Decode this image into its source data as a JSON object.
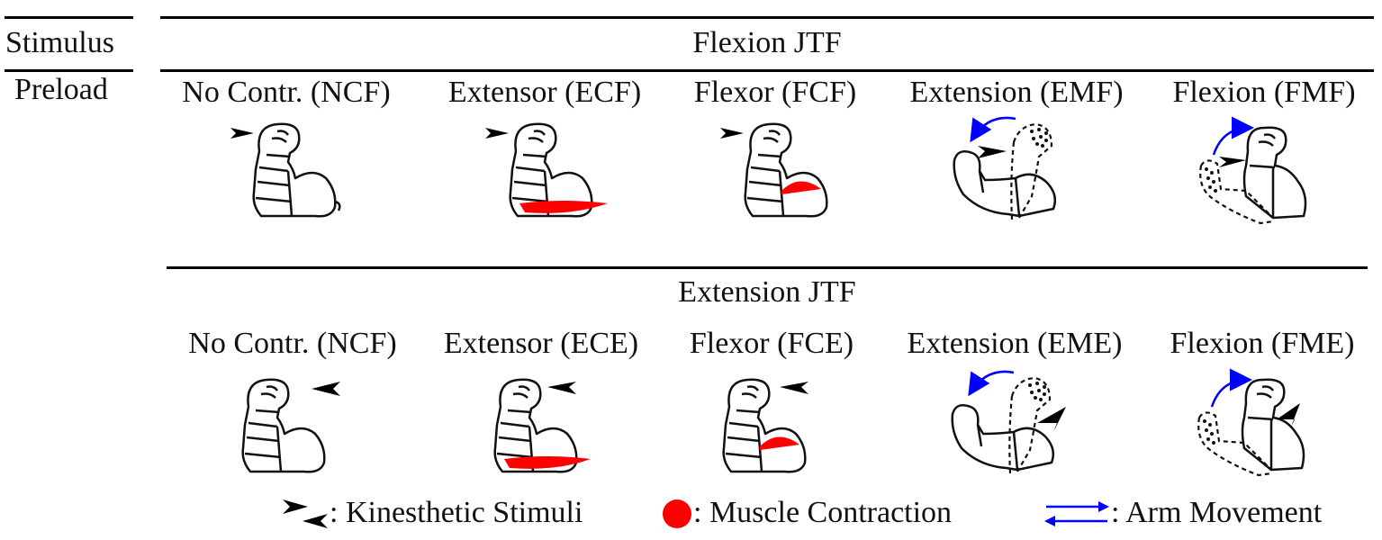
{
  "header": {
    "stimulus_label": "Stimulus",
    "preload_label": "Preload"
  },
  "sections": [
    {
      "title": "Flexion JTF",
      "conditions": [
        {
          "label": "No Contr. (NCF)",
          "muscle": "none",
          "movement": "none",
          "stimulus_direction": "right"
        },
        {
          "label": "Extensor (ECF)",
          "muscle": "extensor",
          "movement": "none",
          "stimulus_direction": "right"
        },
        {
          "label": "Flexor (FCF)",
          "muscle": "flexor",
          "movement": "none",
          "stimulus_direction": "right"
        },
        {
          "label": "Extension (EMF)",
          "muscle": "none",
          "movement": "extension",
          "stimulus_direction": "right"
        },
        {
          "label": "Flexion (FMF)",
          "muscle": "none",
          "movement": "flexion",
          "stimulus_direction": "right"
        }
      ]
    },
    {
      "title": "Extension JTF",
      "conditions": [
        {
          "label": "No Contr. (NCF)",
          "muscle": "none",
          "movement": "none",
          "stimulus_direction": "left"
        },
        {
          "label": "Extensor (ECE)",
          "muscle": "extensor",
          "movement": "none",
          "stimulus_direction": "left"
        },
        {
          "label": "Flexor (FCE)",
          "muscle": "flexor",
          "movement": "none",
          "stimulus_direction": "left"
        },
        {
          "label": "Extension (EME)",
          "muscle": "none",
          "movement": "extension",
          "stimulus_direction": "left"
        },
        {
          "label": "Flexion (FME)",
          "muscle": "none",
          "movement": "flexion",
          "stimulus_direction": "left"
        }
      ]
    }
  ],
  "legend": {
    "kinesthetic": ": Kinesthetic Stimuli",
    "muscle": ": Muscle Contraction",
    "movement": ": Arm Movement"
  },
  "colors": {
    "muscle_contraction": "#ff0000",
    "arm_movement": "#0000ff",
    "stimulus": "#000000"
  }
}
